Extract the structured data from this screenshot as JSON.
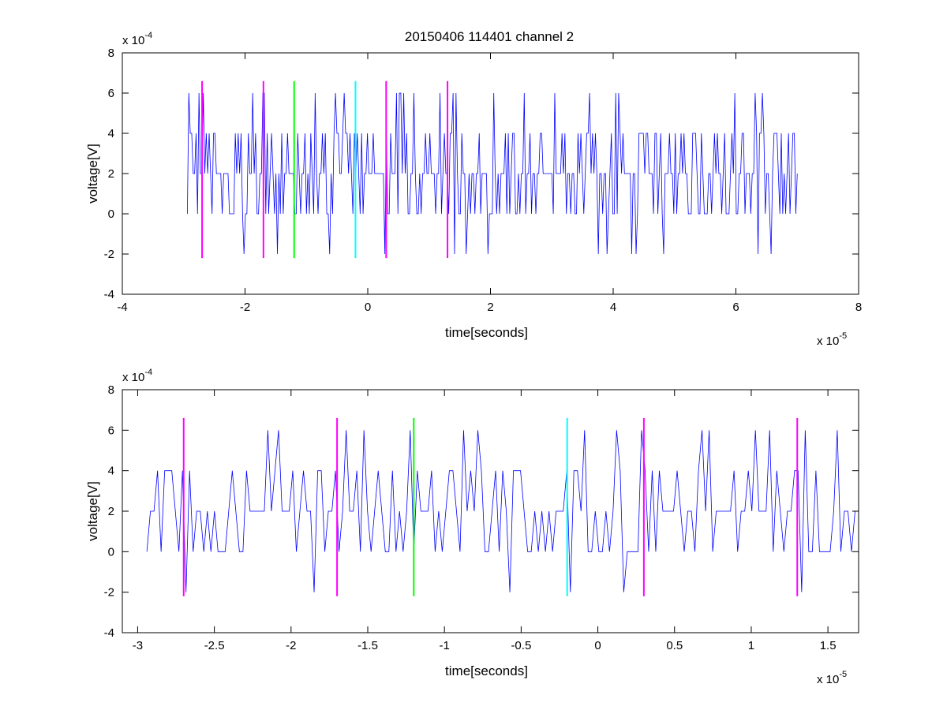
{
  "figure": {
    "title": "20150406 114401 channel 2"
  },
  "chart_data": [
    {
      "type": "line",
      "title": "20150406 114401 channel 2",
      "xlabel": "time[seconds]",
      "ylabel": "voltage[V]",
      "x_multiplier": "x 10",
      "x_exponent": "-5",
      "y_multiplier": "x 10",
      "y_exponent": "-4",
      "xlim": [
        -4,
        8
      ],
      "ylim": [
        -4,
        8
      ],
      "xticks": [
        "-4",
        "-2",
        "0",
        "2",
        "4",
        "6",
        "8"
      ],
      "yticks": [
        "-4",
        "-2",
        "0",
        "2",
        "4",
        "6",
        "8"
      ],
      "grid": false,
      "signal": {
        "color": "#0000ff",
        "x_range": [
          -2.94,
          7.0
        ],
        "levels": [
          -2,
          0,
          2,
          4,
          6
        ],
        "baseline": 2
      },
      "markers": [
        {
          "x": -2.7,
          "color": "#ff00ff",
          "y_range": [
            -2.2,
            6.6
          ]
        },
        {
          "x": -1.7,
          "color": "#ff00ff",
          "y_range": [
            -2.2,
            6.6
          ]
        },
        {
          "x": -1.2,
          "color": "#00ff00",
          "y_range": [
            -2.2,
            6.6
          ]
        },
        {
          "x": -0.2,
          "color": "#00ffff",
          "y_range": [
            -2.2,
            6.6
          ]
        },
        {
          "x": 0.3,
          "color": "#ff00ff",
          "y_range": [
            -2.2,
            6.6
          ]
        },
        {
          "x": 1.3,
          "color": "#ff00ff",
          "y_range": [
            -2.2,
            6.6
          ]
        }
      ]
    },
    {
      "type": "line",
      "xlabel": "time[seconds]",
      "ylabel": "voltage[V]",
      "x_multiplier": "x 10",
      "x_exponent": "-5",
      "y_multiplier": "x 10",
      "y_exponent": "-4",
      "xlim": [
        -3.1,
        1.7
      ],
      "ylim": [
        -4,
        8
      ],
      "xticks": [
        "-3",
        "-2.5",
        "-2",
        "-1.5",
        "-1",
        "-0.5",
        "0",
        "0.5",
        "1",
        "1.5"
      ],
      "yticks": [
        "-4",
        "-2",
        "0",
        "2",
        "4",
        "6",
        "8"
      ],
      "grid": false,
      "signal": {
        "color": "#0000ff",
        "x_range": [
          -2.94,
          1.7
        ],
        "levels": [
          -2,
          0,
          2,
          4,
          6
        ],
        "baseline": 2
      },
      "markers": [
        {
          "x": -2.7,
          "color": "#ff00ff",
          "y_range": [
            -2.2,
            6.6
          ]
        },
        {
          "x": -1.7,
          "color": "#ff00ff",
          "y_range": [
            -2.2,
            6.6
          ]
        },
        {
          "x": -1.2,
          "color": "#00ff00",
          "y_range": [
            -2.2,
            6.6
          ]
        },
        {
          "x": -0.2,
          "color": "#00ffff",
          "y_range": [
            -2.2,
            6.6
          ]
        },
        {
          "x": 0.3,
          "color": "#ff00ff",
          "y_range": [
            -2.2,
            6.6
          ]
        },
        {
          "x": 1.3,
          "color": "#ff00ff",
          "y_range": [
            -2.2,
            6.6
          ]
        }
      ]
    }
  ]
}
